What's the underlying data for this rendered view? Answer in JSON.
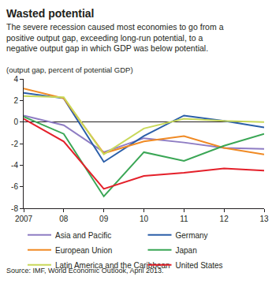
{
  "chart_data": {
    "type": "line",
    "title": "Wasted potential",
    "subtitle": "The severe recession caused most economies to go from a positive output gap, exceeding long-run potential, to a negative output gap in which GDP was below potential.",
    "y_label": "(output gap, percent of potential GDP)",
    "source": "Source: IMF, World Economic Outlook, April 2013.",
    "categories": [
      "2007",
      "08",
      "09",
      "10",
      "11",
      "12",
      "13"
    ],
    "series": [
      {
        "name": "Asia and Pacific",
        "color": "#8e7cc3",
        "values": [
          0.6,
          -0.3,
          -2.8,
          -1.5,
          -1.9,
          -2.4,
          -2.5
        ]
      },
      {
        "name": "Germany",
        "color": "#2a5ea8",
        "values": [
          2.7,
          2.2,
          -3.7,
          -1.3,
          0.6,
          0.1,
          -0.5
        ]
      },
      {
        "name": "European Union",
        "color": "#f08a24",
        "values": [
          3.1,
          2.2,
          -2.9,
          -1.8,
          -1.3,
          -2.4,
          -3.0
        ]
      },
      {
        "name": "Japan",
        "color": "#3aa655",
        "values": [
          0.5,
          -1.1,
          -6.9,
          -2.8,
          -3.6,
          -2.2,
          -1.1
        ]
      },
      {
        "name": "Latin America and the Caribbean",
        "color": "#c8d85a",
        "values": [
          2.4,
          2.3,
          -3.0,
          -0.6,
          0.3,
          0.1,
          0.0
        ]
      },
      {
        "name": "United States",
        "color": "#e4202a",
        "values": [
          0.3,
          -1.8,
          -6.2,
          -5.0,
          -4.7,
          -4.3,
          -4.5
        ]
      }
    ],
    "ylim": [
      -8,
      4
    ],
    "yticks": [
      -8,
      -6,
      -4,
      -2,
      0,
      2,
      4
    ],
    "grid": false,
    "legend": "bottom"
  }
}
